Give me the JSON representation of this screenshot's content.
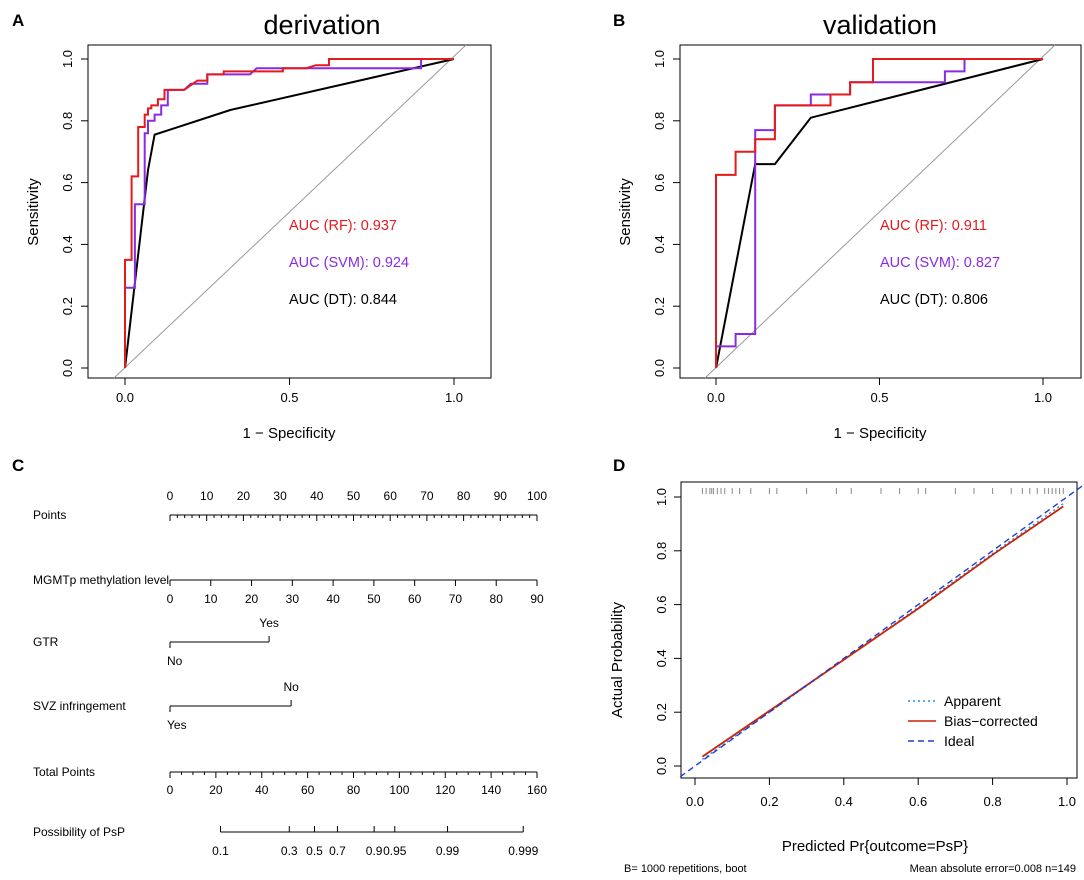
{
  "colors": {
    "rf": "#e41a1c",
    "svm": "#8a2be2",
    "dt": "#000000",
    "diag": "#999999",
    "apparent": "#1e90ff",
    "bias": "#cc2200",
    "ideal": "#1f3fd1"
  },
  "chart_data": [
    {
      "panel": "A",
      "type": "line",
      "title": "derivation",
      "xlabel": "1 − Specificity",
      "ylabel": "Sensitivity",
      "xlim": [
        0,
        1
      ],
      "ylim": [
        0,
        1
      ],
      "xticks": [
        "0.0",
        "0.5",
        "1.0"
      ],
      "yticks": [
        "0.0",
        "0.2",
        "0.4",
        "0.6",
        "0.8",
        "1.0"
      ],
      "series": [
        {
          "name": "RF",
          "color_key": "rf",
          "x": [
            0,
            0,
            0.02,
            0.02,
            0.04,
            0.04,
            0.06,
            0.06,
            0.07,
            0.07,
            0.08,
            0.08,
            0.1,
            0.1,
            0.12,
            0.12,
            0.18,
            0.22,
            0.25,
            0.25,
            0.3,
            0.3,
            0.48,
            0.48,
            0.55,
            0.58,
            0.62,
            0.62,
            1.0
          ],
          "y": [
            0,
            0.35,
            0.35,
            0.62,
            0.62,
            0.78,
            0.78,
            0.82,
            0.82,
            0.84,
            0.84,
            0.85,
            0.85,
            0.87,
            0.87,
            0.9,
            0.9,
            0.93,
            0.93,
            0.95,
            0.95,
            0.96,
            0.96,
            0.97,
            0.97,
            0.98,
            0.98,
            1.0,
            1.0
          ]
        },
        {
          "name": "SVM",
          "color_key": "svm",
          "x": [
            0,
            0,
            0.03,
            0.03,
            0.06,
            0.06,
            0.07,
            0.07,
            0.09,
            0.09,
            0.11,
            0.11,
            0.13,
            0.13,
            0.18,
            0.2,
            0.25,
            0.25,
            0.38,
            0.4,
            0.9,
            0.9,
            1.0
          ],
          "y": [
            0,
            0.26,
            0.26,
            0.53,
            0.53,
            0.76,
            0.76,
            0.8,
            0.8,
            0.82,
            0.82,
            0.85,
            0.85,
            0.9,
            0.9,
            0.92,
            0.92,
            0.95,
            0.95,
            0.97,
            0.97,
            1.0,
            1.0
          ]
        },
        {
          "name": "DT",
          "color_key": "dt",
          "x": [
            0,
            0.07,
            0.09,
            0.32,
            1.0
          ],
          "y": [
            0,
            0.64,
            0.755,
            0.835,
            1.0
          ]
        }
      ],
      "annotations": [
        {
          "label": "AUC (RF):",
          "value": "0.937",
          "color_key": "rf"
        },
        {
          "label": "AUC (SVM):",
          "value": "0.924",
          "color_key": "svm"
        },
        {
          "label": "AUC (DT):",
          "value": "0.844",
          "color_key": "dt"
        }
      ]
    },
    {
      "panel": "B",
      "type": "line",
      "title": "validation",
      "xlabel": "1 − Specificity",
      "ylabel": "Sensitivity",
      "xlim": [
        0,
        1
      ],
      "ylim": [
        0,
        1
      ],
      "xticks": [
        "0.0",
        "0.5",
        "1.0"
      ],
      "yticks": [
        "0.0",
        "0.2",
        "0.4",
        "0.6",
        "0.8",
        "1.0"
      ],
      "series": [
        {
          "name": "RF",
          "color_key": "rf",
          "x": [
            0,
            0,
            0.06,
            0.06,
            0.12,
            0.12,
            0.18,
            0.18,
            0.35,
            0.35,
            0.41,
            0.41,
            0.48,
            0.48,
            1.0
          ],
          "y": [
            0,
            0.625,
            0.625,
            0.7,
            0.7,
            0.74,
            0.74,
            0.85,
            0.85,
            0.885,
            0.885,
            0.925,
            0.925,
            1.0,
            1.0
          ]
        },
        {
          "name": "SVM",
          "color_key": "svm",
          "x": [
            0,
            0,
            0.06,
            0.06,
            0.12,
            0.12,
            0.18,
            0.18,
            0.29,
            0.29,
            0.41,
            0.41,
            0.7,
            0.7,
            0.76,
            0.76,
            1.0
          ],
          "y": [
            0,
            0.07,
            0.07,
            0.11,
            0.11,
            0.77,
            0.77,
            0.85,
            0.85,
            0.885,
            0.885,
            0.925,
            0.925,
            0.96,
            0.96,
            1.0,
            1.0
          ]
        },
        {
          "name": "DT",
          "color_key": "dt",
          "x": [
            0,
            0.12,
            0.18,
            0.29,
            1.0
          ],
          "y": [
            0,
            0.66,
            0.66,
            0.81,
            1.0
          ]
        }
      ],
      "annotations": [
        {
          "label": "AUC (RF):",
          "value": "0.911",
          "color_key": "rf"
        },
        {
          "label": "AUC (SVM):",
          "value": "0.827",
          "color_key": "svm"
        },
        {
          "label": "AUC (DT):",
          "value": "0.806",
          "color_key": "dt"
        }
      ]
    },
    {
      "panel": "C",
      "type": "nomogram",
      "axes": [
        {
          "name": "Points",
          "min": 0,
          "max": 100,
          "labels": [
            "0",
            "10",
            "20",
            "30",
            "40",
            "50",
            "60",
            "70",
            "80",
            "90",
            "100"
          ],
          "label_values": [
            0,
            10,
            20,
            30,
            40,
            50,
            60,
            70,
            80,
            90,
            100
          ],
          "minor_step": 2,
          "label_side": "top"
        },
        {
          "name": "MGMTp methylation level",
          "min": 0,
          "max": 90,
          "labels": [
            "0",
            "10",
            "20",
            "30",
            "40",
            "50",
            "60",
            "70",
            "80",
            "90"
          ],
          "label_values": [
            0,
            10,
            20,
            30,
            40,
            50,
            60,
            70,
            80,
            90
          ],
          "minor_step": 10,
          "label_side": "bottom"
        },
        {
          "name": "GTR",
          "type": "categorical",
          "points": [
            0,
            27
          ],
          "levels": [
            "No",
            "Yes"
          ]
        },
        {
          "name": "SVZ infringement",
          "type": "categorical",
          "points": [
            0,
            33
          ],
          "levels": [
            "Yes",
            "No"
          ]
        },
        {
          "name": "Total Points",
          "min": 0,
          "max": 160,
          "labels": [
            "0",
            "20",
            "40",
            "60",
            "80",
            "100",
            "120",
            "140",
            "160"
          ],
          "label_values": [
            0,
            20,
            40,
            60,
            80,
            100,
            120,
            140,
            160
          ],
          "minor_step": 5,
          "label_side": "bottom"
        },
        {
          "name": "Possibility of PsP",
          "type": "probability",
          "labels": [
            "0.1",
            "0.3",
            "0.5",
            "0.7",
            "0.9",
            "0.95",
            "0.99",
            "0.999"
          ],
          "total_points": [
            22,
            52,
            63,
            73,
            89,
            98,
            121,
            154
          ]
        }
      ]
    },
    {
      "panel": "D",
      "type": "line",
      "xlabel": "Predicted Pr{outcome=PsP}",
      "ylabel": "Actual Probability",
      "xlim": [
        0,
        1
      ],
      "ylim": [
        0,
        1
      ],
      "xticks": [
        "0.0",
        "0.2",
        "0.4",
        "0.6",
        "0.8",
        "1.0"
      ],
      "yticks": [
        "0.0",
        "0.2",
        "0.4",
        "0.6",
        "0.8",
        "1.0"
      ],
      "series": [
        {
          "name": "Apparent",
          "color_key": "apparent",
          "style": "dotted",
          "x": [
            0.02,
            0.2,
            0.4,
            0.6,
            0.8,
            0.99
          ],
          "y": [
            0.025,
            0.2,
            0.395,
            0.59,
            0.79,
            0.975
          ]
        },
        {
          "name": "Bias−corrected",
          "color_key": "bias",
          "style": "solid",
          "x": [
            0.02,
            0.2,
            0.4,
            0.6,
            0.8,
            0.99
          ],
          "y": [
            0.035,
            0.205,
            0.395,
            0.585,
            0.785,
            0.965
          ]
        },
        {
          "name": "Ideal",
          "color_key": "ideal",
          "style": "dashed",
          "x": [
            -0.05,
            1.05
          ],
          "y": [
            -0.05,
            1.05
          ]
        }
      ],
      "rug_x": [
        0.02,
        0.03,
        0.04,
        0.045,
        0.05,
        0.06,
        0.07,
        0.08,
        0.1,
        0.12,
        0.15,
        0.2,
        0.22,
        0.3,
        0.38,
        0.42,
        0.5,
        0.55,
        0.6,
        0.62,
        0.7,
        0.75,
        0.8,
        0.85,
        0.88,
        0.9,
        0.92,
        0.94,
        0.95,
        0.96,
        0.97,
        0.98,
        0.99
      ],
      "legend": [
        "Apparent",
        "Bias−corrected",
        "Ideal"
      ],
      "legend_position": "bottom-right",
      "footer_left": "B= 1000 repetitions, boot",
      "footer_right": "Mean absolute error=0.008 n=149"
    }
  ],
  "panel_labels": [
    "A",
    "B",
    "C",
    "D"
  ]
}
